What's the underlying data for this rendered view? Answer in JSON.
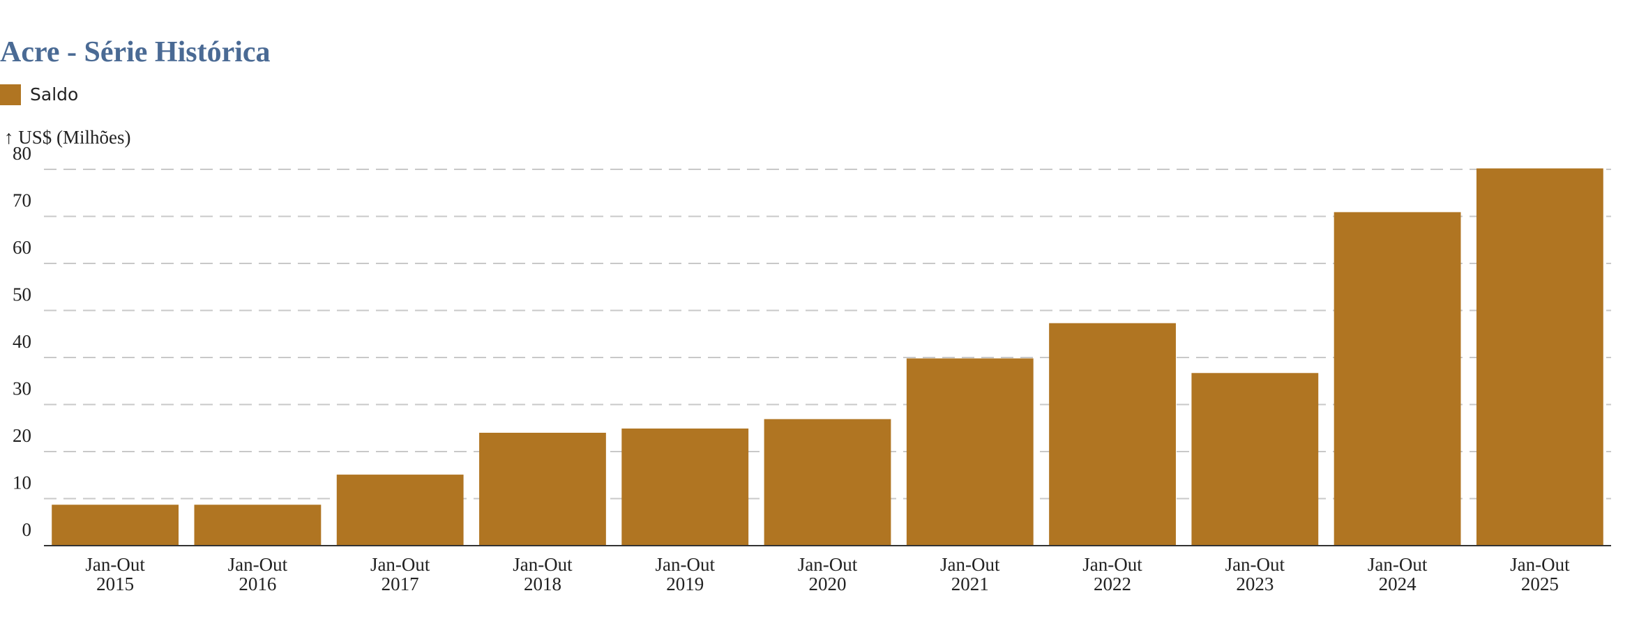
{
  "chart_data": {
    "type": "bar",
    "title": "Acre - Série Histórica",
    "y_label": "↑ US$ (Milhões)",
    "categories": [
      [
        "Jan-Out",
        "2015"
      ],
      [
        "Jan-Out",
        "2016"
      ],
      [
        "Jan-Out",
        "2017"
      ],
      [
        "Jan-Out",
        "2018"
      ],
      [
        "Jan-Out",
        "2019"
      ],
      [
        "Jan-Out",
        "2020"
      ],
      [
        "Jan-Out",
        "2021"
      ],
      [
        "Jan-Out",
        "2022"
      ],
      [
        "Jan-Out",
        "2023"
      ],
      [
        "Jan-Out",
        "2024"
      ],
      [
        "Jan-Out",
        "2025"
      ]
    ],
    "series": [
      {
        "name": "Saldo",
        "color": "#b07522",
        "values": [
          8.7,
          8.7,
          15.1,
          24.0,
          24.9,
          26.9,
          39.8,
          47.3,
          36.7,
          70.9,
          80.2
        ]
      }
    ],
    "ylim": [
      0,
      80
    ],
    "yticks": [
      0,
      10,
      20,
      30,
      40,
      50,
      60,
      70,
      80
    ],
    "grid": true
  }
}
